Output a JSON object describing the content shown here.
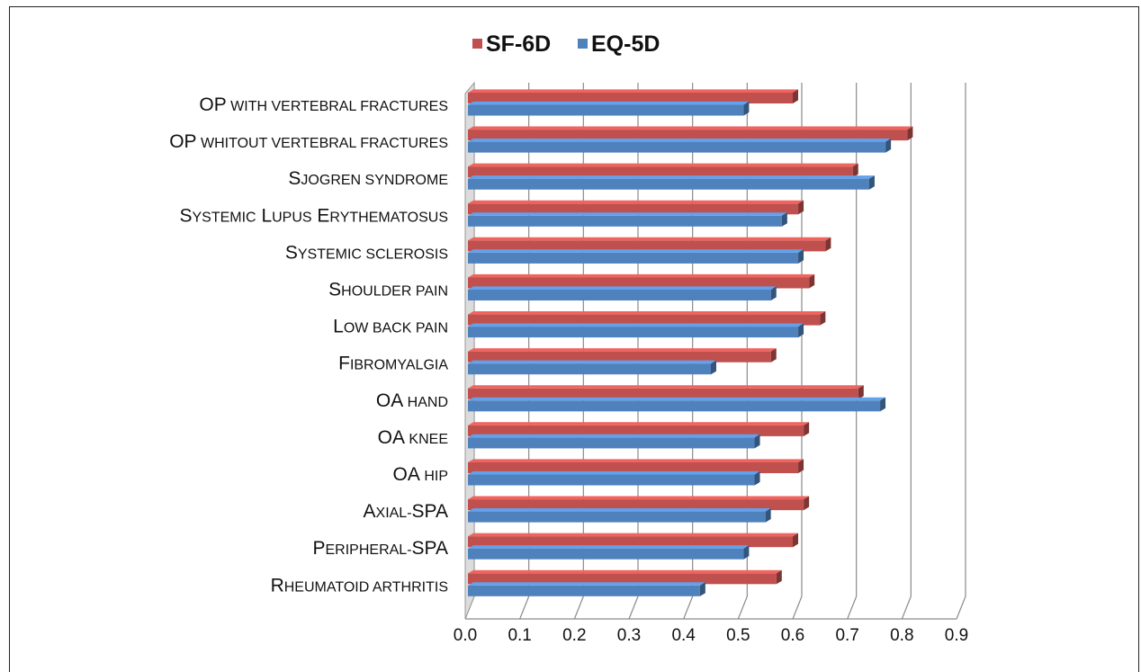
{
  "chart_data": {
    "type": "bar",
    "orientation": "horizontal",
    "style": "3d-clustered",
    "categories": [
      "OP with vertebral fractures",
      "OP whitout vertebral fractures",
      "Sjogren syndrome",
      "Systemic Lupus Erythematosus",
      "Systemic sclerosis",
      "Shoulder pain",
      "Low back pain",
      "Fibromyalgia",
      "OA hand",
      "OA knee",
      "OA hip",
      "Axial-SPA",
      "Peripheral-SPA",
      "Rheumatoid arthritis"
    ],
    "series": [
      {
        "name": "SF-6D",
        "color": "#c0504d",
        "values": [
          0.6,
          0.81,
          0.71,
          0.61,
          0.66,
          0.63,
          0.65,
          0.56,
          0.72,
          0.62,
          0.61,
          0.62,
          0.6,
          0.57
        ]
      },
      {
        "name": "EQ-5D",
        "color": "#4f81bd",
        "values": [
          0.51,
          0.77,
          0.74,
          0.58,
          0.61,
          0.56,
          0.61,
          0.45,
          0.76,
          0.53,
          0.53,
          0.55,
          0.51,
          0.43
        ]
      }
    ],
    "xlim": [
      0,
      0.9
    ],
    "xticks": [
      "0.0",
      "0.1",
      "0.2",
      "0.3",
      "0.4",
      "0.5",
      "0.6",
      "0.7",
      "0.8",
      "0.9"
    ],
    "grid": true,
    "legend": "top-center"
  }
}
